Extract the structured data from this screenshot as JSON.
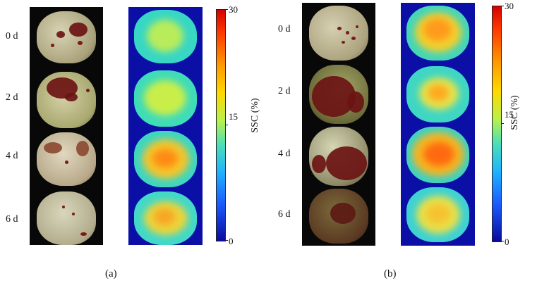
{
  "panels": [
    {
      "id": "a",
      "caption": "(a)",
      "days": [
        "0 d",
        "2 d",
        "4 d",
        "6 d"
      ],
      "colorbar": {
        "title": "SSC (%)",
        "max_label": "30",
        "mid_label": "15",
        "min_label": "0"
      }
    },
    {
      "id": "b",
      "caption": "(b)",
      "days": [
        "0 d",
        "2 d",
        "4 d",
        "6 d"
      ],
      "colorbar": {
        "title": "SSC (%)",
        "max_label": "30",
        "mid_label": "15",
        "min_label": "0"
      }
    }
  ],
  "colors": {
    "heatmap_background": "#0b0fa6",
    "photo_background": "#080808",
    "fruit_skin": "#b9b08a",
    "fruit_blotch": "#6b1414"
  }
}
